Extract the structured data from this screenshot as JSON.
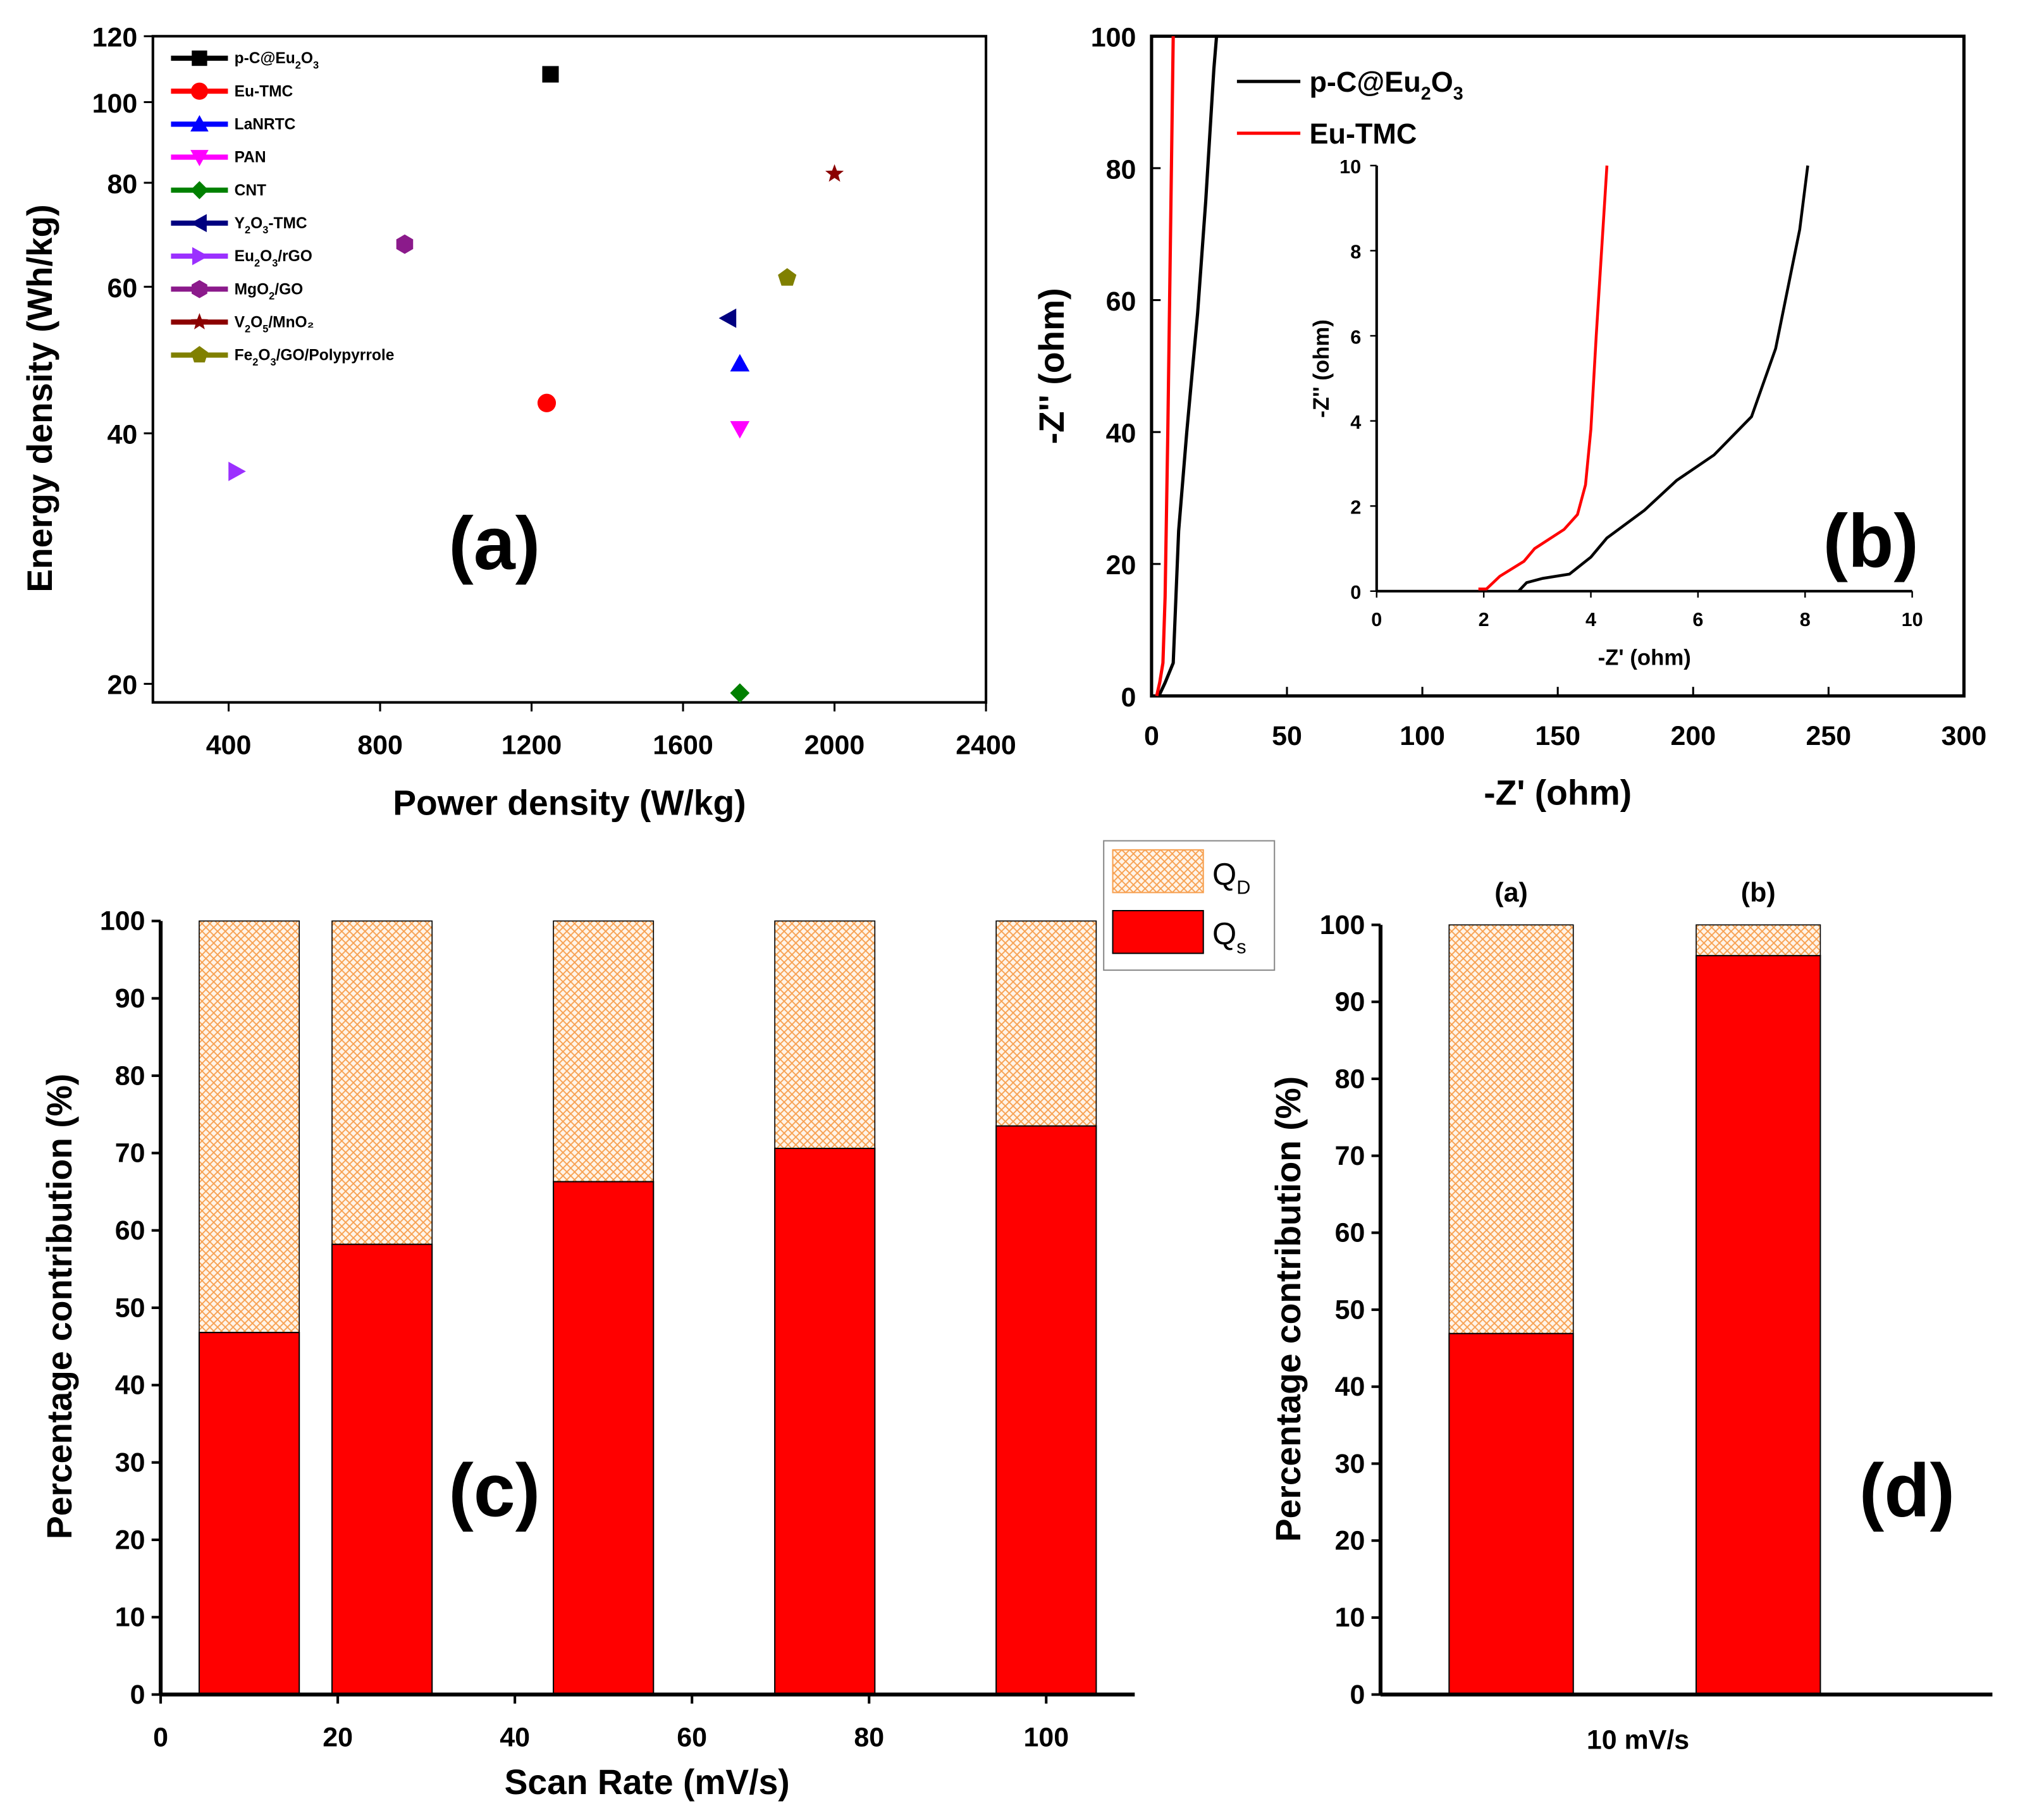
{
  "chart_data": [
    {
      "type": "scatter",
      "panel_label": "(a)",
      "xlabel": "Power density (W/kg)",
      "ylabel": "Energy density (Wh/kg)",
      "xlim": [
        200,
        2400
      ],
      "ylim": [
        19,
        120
      ],
      "yscale": "log",
      "xticks": [
        400,
        800,
        1200,
        1600,
        2000,
        2400
      ],
      "yticks": [
        20,
        40,
        60,
        80,
        100,
        120
      ],
      "legend_position": "top-left",
      "series": [
        {
          "name": "p-C@Eu2O3",
          "label_main": "p-C@Eu",
          "sub1": "2",
          "mid": "O",
          "sub2": "3",
          "tail": "",
          "marker": "square",
          "color": "#000000",
          "x": 1250,
          "y": 108
        },
        {
          "name": "Eu-TMC",
          "label_main": "Eu-TMC",
          "sub1": "",
          "mid": "",
          "sub2": "",
          "tail": "",
          "marker": "circle",
          "color": "#ff0000",
          "x": 1240,
          "y": 43.5
        },
        {
          "name": "LaNRTC",
          "label_main": "LaNRTC",
          "sub1": "",
          "mid": "",
          "sub2": "",
          "tail": "",
          "marker": "triangle-up",
          "color": "#0000ff",
          "x": 1750,
          "y": 48.5
        },
        {
          "name": "PAN",
          "label_main": "PAN",
          "sub1": "",
          "mid": "",
          "sub2": "",
          "tail": "",
          "marker": "triangle-down",
          "color": "#ff00ff",
          "x": 1750,
          "y": 40.5
        },
        {
          "name": "CNT",
          "label_main": "CNT",
          "sub1": "",
          "mid": "",
          "sub2": "",
          "tail": "",
          "marker": "diamond",
          "color": "#008000",
          "x": 1750,
          "y": 19.5
        },
        {
          "name": "Y2O3-TMC",
          "label_main": "Y",
          "sub1": "2",
          "mid": "O",
          "sub2": "3",
          "tail": "-TMC",
          "marker": "triangle-left",
          "color": "#000080",
          "x": 1720,
          "y": 55
        },
        {
          "name": "Eu2O3/rGO",
          "label_main": "Eu",
          "sub1": "2",
          "mid": "O",
          "sub2": "3",
          "tail": "/rGO",
          "marker": "triangle-right",
          "color": "#9b30ff",
          "x": 420,
          "y": 36
        },
        {
          "name": "MgO2/GO",
          "label_main": "MgO",
          "sub1": "2",
          "mid": "/GO",
          "sub2": "",
          "tail": "",
          "marker": "hexagon",
          "color": "#8b1a8b",
          "x": 865,
          "y": 67.5
        },
        {
          "name": "V2O5/MnO2",
          "label_main": "V",
          "sub1": "2",
          "mid": "O",
          "sub2": "5",
          "tail": "/MnO₂",
          "marker": "star",
          "color": "#8b0000",
          "x": 2000,
          "y": 82
        },
        {
          "name": "Fe2O3/GO/Polypyrrole",
          "label_main": "Fe",
          "sub1": "2",
          "mid": "O",
          "sub2": "3",
          "tail": "/GO/Polypyrrole",
          "marker": "pentagon",
          "color": "#808000",
          "x": 1875,
          "y": 61.5
        }
      ]
    },
    {
      "type": "line",
      "panel_label": "(b)",
      "xlabel": "-Z' (ohm)",
      "ylabel": "-Z'' (ohm)",
      "xlim": [
        0,
        300
      ],
      "ylim": [
        0,
        100
      ],
      "xticks": [
        0,
        50,
        100,
        150,
        200,
        250,
        300
      ],
      "yticks": [
        0,
        20,
        40,
        60,
        80,
        100
      ],
      "legend_position": "top-left",
      "series": [
        {
          "name": "p-C@Eu2O3",
          "label_main": "p-C@Eu",
          "sub1": "2",
          "mid": "O",
          "sub2": "3",
          "color": "#000000",
          "x": [
            2.7,
            5,
            8,
            9,
            10,
            13,
            17,
            20,
            23,
            24
          ],
          "y": [
            0,
            2,
            5,
            15,
            25,
            40,
            58,
            75,
            95,
            100
          ]
        },
        {
          "name": "Eu-TMC",
          "label_main": "Eu-TMC",
          "sub1": "",
          "mid": "",
          "sub2": "",
          "color": "#ff0000",
          "x": [
            1.9,
            3,
            4.2,
            5,
            6,
            7,
            8
          ],
          "y": [
            0,
            2,
            5,
            15,
            40,
            70,
            100
          ]
        }
      ],
      "inset": {
        "xlabel": "-Z' (ohm)",
        "ylabel": "-Z'' (ohm)",
        "xlim": [
          0,
          10
        ],
        "ylim": [
          0,
          10
        ],
        "xticks": [
          0,
          2,
          4,
          6,
          8,
          10
        ],
        "yticks": [
          0,
          2,
          4,
          6,
          8,
          10
        ],
        "series": [
          {
            "name": "p-C@Eu2O3",
            "color": "#000000",
            "x": [
              2.65,
              2.8,
              3.1,
              3.6,
              4.0,
              4.3,
              5.0,
              5.6,
              6.3,
              7.0,
              7.45,
              7.9,
              8.05
            ],
            "y": [
              0,
              0.2,
              0.3,
              0.4,
              0.8,
              1.25,
              1.9,
              2.6,
              3.2,
              4.1,
              5.7,
              8.5,
              10
            ]
          },
          {
            "name": "Eu-TMC",
            "color": "#ff0000",
            "x": [
              1.9,
              2.05,
              2.3,
              2.75,
              2.95,
              3.5,
              3.75,
              3.9,
              4.0,
              4.1,
              4.3
            ],
            "y": [
              0.05,
              0.05,
              0.35,
              0.7,
              1.0,
              1.45,
              1.8,
              2.5,
              3.8,
              6.0,
              10
            ]
          }
        ]
      }
    },
    {
      "type": "bar",
      "stacked": true,
      "panel_label": "(c)",
      "xlabel": "Scan Rate (mV/s)",
      "ylabel": "Percentage contribution (%)",
      "xlim": [
        0,
        110
      ],
      "ylim": [
        0,
        100
      ],
      "xticks": [
        0,
        20,
        40,
        60,
        80,
        100
      ],
      "yticks": [
        0,
        10,
        20,
        30,
        40,
        50,
        60,
        70,
        80,
        90,
        100
      ],
      "x": [
        10,
        25,
        50,
        75,
        100
      ],
      "bar_width": 11.3,
      "legend_position": "top-right",
      "legend": {
        "qd_main": "Q",
        "qd_sub": "D",
        "qs_main": "Q",
        "qs_sub": "s"
      },
      "series": [
        {
          "name": "Qs",
          "color": "#ff0000",
          "values": [
            46.8,
            58.2,
            66.3,
            70.6,
            73.5
          ]
        },
        {
          "name": "QD",
          "color": "#ffa040",
          "pattern": "crosshatch",
          "values": [
            53.2,
            41.8,
            33.7,
            29.4,
            26.5
          ]
        }
      ]
    },
    {
      "type": "bar",
      "stacked": true,
      "panel_label": "(d)",
      "xlabel": "10 mV/s",
      "ylabel": "Percentage contribution (%)",
      "ylim": [
        0,
        100
      ],
      "yticks": [
        0,
        10,
        20,
        30,
        40,
        50,
        60,
        70,
        80,
        90,
        100
      ],
      "categories": [
        "(a)",
        "(b)"
      ],
      "series": [
        {
          "name": "Qs",
          "color": "#ff0000",
          "values": [
            46.9,
            96.0
          ]
        },
        {
          "name": "QD",
          "color": "#ffa040",
          "pattern": "crosshatch",
          "values": [
            53.1,
            4.0
          ]
        }
      ]
    }
  ]
}
